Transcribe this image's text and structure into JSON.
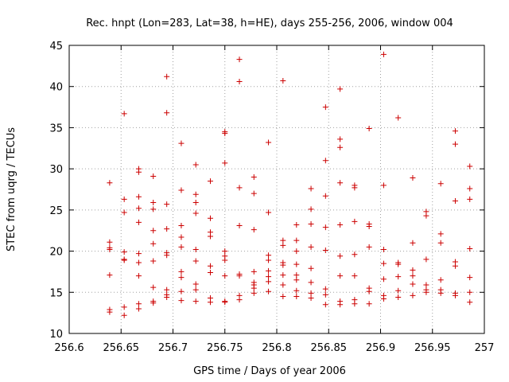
{
  "chart_data": {
    "type": "scatter",
    "title": "Rec. hnpt (Lon=283, Lat=38, h=HE), days 255-256, 2006, window 004",
    "xlabel": "GPS time / Days of year 2006",
    "ylabel": "STEC from uqrg / TECUs",
    "xlim": [
      256.6,
      257
    ],
    "ylim": [
      10,
      45
    ],
    "xticks": [
      "256.6",
      "256.65",
      "256.7",
      "256.75",
      "256.8",
      "256.85",
      "256.9",
      "256.95",
      "257"
    ],
    "yticks": [
      "10",
      "15",
      "20",
      "25",
      "30",
      "35",
      "40",
      "45"
    ],
    "grid": true,
    "marker": "plus",
    "color": "#cc0000",
    "points": [
      [
        256.639,
        28.3
      ],
      [
        256.639,
        21.1
      ],
      [
        256.639,
        20.4
      ],
      [
        256.639,
        20.2
      ],
      [
        256.639,
        17.1
      ],
      [
        256.639,
        12.9
      ],
      [
        256.639,
        12.6
      ],
      [
        256.653,
        36.7
      ],
      [
        256.653,
        26.3
      ],
      [
        256.653,
        24.7
      ],
      [
        256.653,
        19.9
      ],
      [
        256.653,
        19.0
      ],
      [
        256.653,
        18.9
      ],
      [
        256.653,
        13.2
      ],
      [
        256.653,
        12.2
      ],
      [
        256.667,
        30.0
      ],
      [
        256.667,
        29.6
      ],
      [
        256.667,
        26.6
      ],
      [
        256.667,
        25.2
      ],
      [
        256.667,
        23.5
      ],
      [
        256.667,
        19.7
      ],
      [
        256.667,
        18.6
      ],
      [
        256.667,
        17.0
      ],
      [
        256.667,
        13.6
      ],
      [
        256.667,
        13.0
      ],
      [
        256.681,
        29.1
      ],
      [
        256.681,
        25.9
      ],
      [
        256.681,
        25.1
      ],
      [
        256.681,
        22.5
      ],
      [
        256.681,
        20.9
      ],
      [
        256.681,
        18.8
      ],
      [
        256.681,
        15.6
      ],
      [
        256.681,
        13.9
      ],
      [
        256.681,
        13.7
      ],
      [
        256.694,
        41.2
      ],
      [
        256.694,
        36.8
      ],
      [
        256.694,
        25.7
      ],
      [
        256.694,
        22.7
      ],
      [
        256.694,
        19.8
      ],
      [
        256.694,
        19.5
      ],
      [
        256.694,
        15.3
      ],
      [
        256.694,
        14.7
      ],
      [
        256.694,
        14.4
      ],
      [
        256.708,
        33.1
      ],
      [
        256.708,
        27.4
      ],
      [
        256.708,
        23.1
      ],
      [
        256.708,
        21.7
      ],
      [
        256.708,
        20.5
      ],
      [
        256.708,
        17.5
      ],
      [
        256.708,
        16.8
      ],
      [
        256.708,
        15.1
      ],
      [
        256.708,
        14.0
      ],
      [
        256.722,
        30.5
      ],
      [
        256.722,
        26.9
      ],
      [
        256.722,
        25.9
      ],
      [
        256.722,
        24.6
      ],
      [
        256.722,
        20.2
      ],
      [
        256.722,
        18.8
      ],
      [
        256.722,
        16.0
      ],
      [
        256.722,
        15.3
      ],
      [
        256.722,
        13.9
      ],
      [
        256.736,
        28.5
      ],
      [
        256.736,
        24.0
      ],
      [
        256.736,
        22.3
      ],
      [
        256.736,
        21.8
      ],
      [
        256.736,
        18.2
      ],
      [
        256.736,
        17.4
      ],
      [
        256.736,
        14.3
      ],
      [
        256.736,
        13.8
      ],
      [
        256.75,
        34.5
      ],
      [
        256.75,
        34.3
      ],
      [
        256.75,
        30.7
      ],
      [
        256.75,
        20.0
      ],
      [
        256.75,
        19.4
      ],
      [
        256.75,
        18.9
      ],
      [
        256.75,
        17.0
      ],
      [
        256.75,
        13.9
      ],
      [
        256.75,
        13.8
      ],
      [
        256.764,
        43.3
      ],
      [
        256.764,
        40.6
      ],
      [
        256.764,
        27.7
      ],
      [
        256.764,
        23.1
      ],
      [
        256.764,
        17.2
      ],
      [
        256.764,
        17.0
      ],
      [
        256.764,
        14.6
      ],
      [
        256.764,
        14.1
      ],
      [
        256.778,
        29.0
      ],
      [
        256.778,
        27.0
      ],
      [
        256.778,
        22.6
      ],
      [
        256.778,
        17.5
      ],
      [
        256.778,
        16.2
      ],
      [
        256.778,
        15.9
      ],
      [
        256.778,
        15.5
      ],
      [
        256.778,
        14.9
      ],
      [
        256.792,
        33.2
      ],
      [
        256.792,
        24.7
      ],
      [
        256.792,
        19.5
      ],
      [
        256.792,
        18.9
      ],
      [
        256.792,
        17.6
      ],
      [
        256.792,
        16.9
      ],
      [
        256.792,
        16.3
      ],
      [
        256.792,
        15.1
      ],
      [
        256.806,
        40.7
      ],
      [
        256.806,
        21.3
      ],
      [
        256.806,
        20.7
      ],
      [
        256.806,
        18.6
      ],
      [
        256.806,
        18.3
      ],
      [
        256.806,
        17.1
      ],
      [
        256.806,
        15.9
      ],
      [
        256.806,
        14.5
      ],
      [
        256.819,
        23.2
      ],
      [
        256.819,
        21.3
      ],
      [
        256.819,
        20.0
      ],
      [
        256.819,
        18.4
      ],
      [
        256.819,
        17.1
      ],
      [
        256.819,
        16.5
      ],
      [
        256.819,
        15.2
      ],
      [
        256.819,
        14.5
      ],
      [
        256.833,
        27.6
      ],
      [
        256.833,
        25.1
      ],
      [
        256.833,
        23.3
      ],
      [
        256.833,
        20.5
      ],
      [
        256.833,
        17.9
      ],
      [
        256.833,
        16.2
      ],
      [
        256.833,
        14.9
      ],
      [
        256.833,
        14.3
      ],
      [
        256.847,
        37.5
      ],
      [
        256.847,
        31.0
      ],
      [
        256.847,
        26.7
      ],
      [
        256.847,
        22.9
      ],
      [
        256.847,
        20.1
      ],
      [
        256.847,
        15.4
      ],
      [
        256.847,
        14.7
      ],
      [
        256.847,
        13.5
      ],
      [
        256.861,
        39.7
      ],
      [
        256.861,
        33.6
      ],
      [
        256.861,
        32.6
      ],
      [
        256.861,
        28.3
      ],
      [
        256.861,
        23.2
      ],
      [
        256.861,
        19.4
      ],
      [
        256.861,
        17.0
      ],
      [
        256.861,
        13.9
      ],
      [
        256.861,
        13.5
      ],
      [
        256.875,
        28.0
      ],
      [
        256.875,
        27.7
      ],
      [
        256.875,
        23.6
      ],
      [
        256.875,
        19.6
      ],
      [
        256.875,
        17.0
      ],
      [
        256.875,
        14.1
      ],
      [
        256.875,
        13.6
      ],
      [
        256.889,
        34.9
      ],
      [
        256.889,
        23.3
      ],
      [
        256.889,
        23.0
      ],
      [
        256.889,
        20.5
      ],
      [
        256.889,
        15.5
      ],
      [
        256.889,
        15.1
      ],
      [
        256.889,
        13.6
      ],
      [
        256.903,
        43.9
      ],
      [
        256.903,
        28.0
      ],
      [
        256.903,
        20.2
      ],
      [
        256.903,
        18.5
      ],
      [
        256.903,
        16.6
      ],
      [
        256.903,
        14.6
      ],
      [
        256.903,
        14.2
      ],
      [
        256.917,
        36.2
      ],
      [
        256.917,
        18.6
      ],
      [
        256.917,
        18.4
      ],
      [
        256.917,
        16.9
      ],
      [
        256.917,
        15.2
      ],
      [
        256.917,
        14.4
      ],
      [
        256.931,
        28.9
      ],
      [
        256.931,
        21.0
      ],
      [
        256.931,
        17.7
      ],
      [
        256.931,
        17.0
      ],
      [
        256.931,
        16.0
      ],
      [
        256.931,
        14.6
      ],
      [
        256.944,
        24.8
      ],
      [
        256.944,
        24.3
      ],
      [
        256.944,
        19.0
      ],
      [
        256.944,
        15.9
      ],
      [
        256.944,
        15.3
      ],
      [
        256.944,
        15.0
      ],
      [
        256.958,
        28.2
      ],
      [
        256.958,
        22.1
      ],
      [
        256.958,
        21.0
      ],
      [
        256.958,
        16.5
      ],
      [
        256.958,
        15.3
      ],
      [
        256.958,
        14.9
      ],
      [
        256.972,
        34.6
      ],
      [
        256.972,
        33.0
      ],
      [
        256.972,
        26.1
      ],
      [
        256.972,
        18.7
      ],
      [
        256.972,
        18.2
      ],
      [
        256.972,
        14.9
      ],
      [
        256.972,
        14.6
      ],
      [
        256.986,
        30.3
      ],
      [
        256.986,
        27.6
      ],
      [
        256.986,
        26.3
      ],
      [
        256.986,
        20.3
      ],
      [
        256.986,
        16.8
      ],
      [
        256.986,
        15.0
      ],
      [
        256.986,
        13.8
      ]
    ]
  }
}
